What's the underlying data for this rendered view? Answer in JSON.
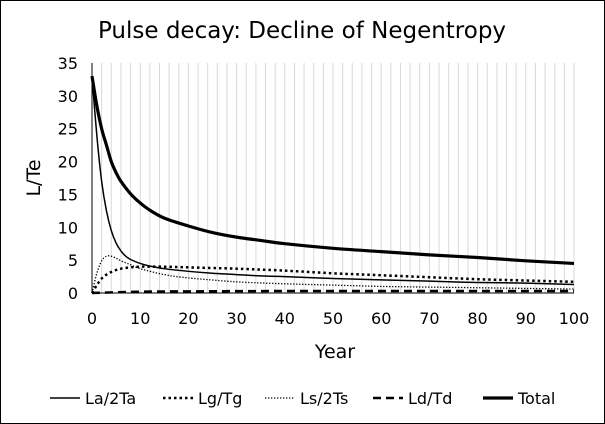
{
  "chart_data": {
    "type": "line",
    "title": "Pulse decay: Decline of Negentropy",
    "xlabel": "Year",
    "ylabel": "L/Te",
    "xlim": [
      0,
      100
    ],
    "ylim": [
      0,
      35
    ],
    "xticks": [
      0,
      10,
      20,
      30,
      40,
      50,
      60,
      70,
      80,
      90,
      100
    ],
    "yticks": [
      0,
      5,
      10,
      15,
      20,
      25,
      30,
      35
    ],
    "grid": "vertical gridlines every 2 years",
    "legend_position": "bottom",
    "series": [
      {
        "name": "La/2Ta",
        "style": "solid-thin",
        "points": [
          [
            0,
            33
          ],
          [
            1,
            24
          ],
          [
            2,
            17
          ],
          [
            3,
            12.5
          ],
          [
            4,
            9.5
          ],
          [
            5,
            7.6
          ],
          [
            6,
            6.4
          ],
          [
            7,
            5.6
          ],
          [
            8,
            5.1
          ],
          [
            10,
            4.5
          ],
          [
            12,
            4.1
          ],
          [
            15,
            3.7
          ],
          [
            20,
            3.3
          ],
          [
            25,
            3.0
          ],
          [
            30,
            2.8
          ],
          [
            35,
            2.6
          ],
          [
            40,
            2.5
          ],
          [
            50,
            2.2
          ],
          [
            60,
            2.0
          ],
          [
            70,
            1.8
          ],
          [
            80,
            1.6
          ],
          [
            90,
            1.5
          ],
          [
            100,
            1.3
          ]
        ]
      },
      {
        "name": "Lg/Tg",
        "style": "dotted",
        "points": [
          [
            0,
            0
          ],
          [
            1,
            1.2
          ],
          [
            2,
            2.2
          ],
          [
            3,
            2.8
          ],
          [
            4,
            3.2
          ],
          [
            5,
            3.5
          ],
          [
            6,
            3.7
          ],
          [
            8,
            3.9
          ],
          [
            10,
            4.0
          ],
          [
            15,
            4.0
          ],
          [
            20,
            3.9
          ],
          [
            25,
            3.8
          ],
          [
            30,
            3.7
          ],
          [
            40,
            3.4
          ],
          [
            50,
            3.0
          ],
          [
            60,
            2.7
          ],
          [
            70,
            2.4
          ],
          [
            80,
            2.1
          ],
          [
            90,
            1.9
          ],
          [
            100,
            1.7
          ]
        ]
      },
      {
        "name": "Ls/2Ts",
        "style": "dotted-fine",
        "points": [
          [
            0,
            0
          ],
          [
            1,
            3.0
          ],
          [
            2,
            4.9
          ],
          [
            3,
            5.6
          ],
          [
            4,
            5.6
          ],
          [
            5,
            5.3
          ],
          [
            6,
            4.9
          ],
          [
            8,
            4.3
          ],
          [
            10,
            3.7
          ],
          [
            15,
            2.8
          ],
          [
            20,
            2.3
          ],
          [
            30,
            1.7
          ],
          [
            40,
            1.4
          ],
          [
            50,
            1.2
          ],
          [
            60,
            1.0
          ],
          [
            70,
            0.9
          ],
          [
            80,
            0.8
          ],
          [
            90,
            0.7
          ],
          [
            100,
            0.6
          ]
        ]
      },
      {
        "name": "Ld/Td",
        "style": "dashed",
        "points": [
          [
            0,
            0
          ],
          [
            10,
            0.2
          ],
          [
            20,
            0.25
          ],
          [
            30,
            0.28
          ],
          [
            40,
            0.3
          ],
          [
            50,
            0.3
          ],
          [
            60,
            0.3
          ],
          [
            70,
            0.3
          ],
          [
            80,
            0.3
          ],
          [
            90,
            0.3
          ],
          [
            100,
            0.3
          ]
        ]
      },
      {
        "name": "Total",
        "style": "solid-thick",
        "points": [
          [
            0,
            33
          ],
          [
            1,
            28.5
          ],
          [
            2,
            25
          ],
          [
            3,
            22.5
          ],
          [
            4,
            20
          ],
          [
            5,
            18.3
          ],
          [
            6,
            17
          ],
          [
            8,
            15.1
          ],
          [
            10,
            13.7
          ],
          [
            12,
            12.6
          ],
          [
            15,
            11.4
          ],
          [
            20,
            10.2
          ],
          [
            25,
            9.2
          ],
          [
            30,
            8.5
          ],
          [
            35,
            8.0
          ],
          [
            40,
            7.5
          ],
          [
            50,
            6.8
          ],
          [
            60,
            6.3
          ],
          [
            70,
            5.8
          ],
          [
            80,
            5.4
          ],
          [
            90,
            4.9
          ],
          [
            100,
            4.5
          ]
        ]
      }
    ]
  }
}
